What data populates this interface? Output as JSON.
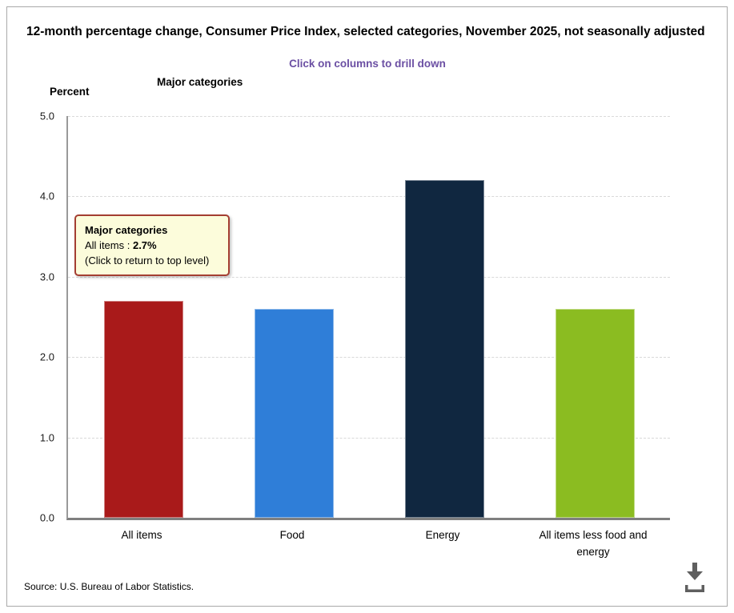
{
  "window": {
    "background": "#ffffff",
    "border_color": "#a9a9a9"
  },
  "header": {
    "title": "12-month percentage change, Consumer Price Index, selected categories, November 2025, not seasonally adjusted",
    "subtitle": "Click on columns to drill down",
    "subtitle_color": "#6b4fa3"
  },
  "chart_data": {
    "type": "bar",
    "title": "Major categories",
    "ylabel": "Percent",
    "xlabel": "",
    "categories": [
      "All items",
      "Food",
      "Energy",
      "All items less food and energy"
    ],
    "values": [
      2.7,
      2.6,
      4.2,
      2.6
    ],
    "bar_colors": [
      "#a91a1a",
      "#2f7ed8",
      "#102740",
      "#8bbc21"
    ],
    "ylim": [
      0,
      5
    ],
    "ytick_labels": [
      "0.0",
      "1.0",
      "2.0",
      "3.0",
      "4.0",
      "5.0"
    ],
    "grid": "horizontal-dashed",
    "gridline_color": "#d9d9d9",
    "legend_position": "none",
    "interaction_note": "columns are clickable drilldown targets"
  },
  "tooltip": {
    "title": "Major categories",
    "label": "All items : ",
    "value": "2.7%",
    "hint": "(Click to return to top level)",
    "background": "#fcfcdb",
    "border_color": "#a43e32"
  },
  "footer": {
    "source": "Source: U.S. Bureau of Labor Statistics.",
    "download_icon": "download-icon",
    "icon_color": "#5f5f5f"
  }
}
